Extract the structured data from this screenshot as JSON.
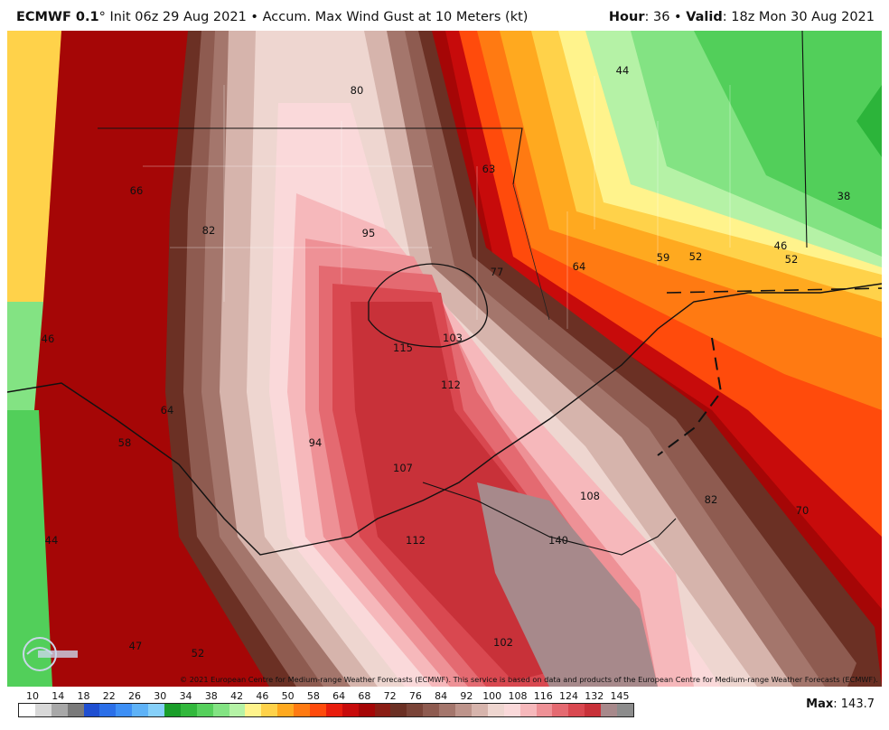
{
  "header": {
    "model": "ECMWF 0.1",
    "degree": "°",
    "init": " Init 06z 29 Aug 2021 • Accum. Max Wind Gust at 10 Meters (kt)",
    "hour_label": "Hour",
    "hour_value": ": 36 • ",
    "valid_label": "Valid",
    "valid_value": ": 18z Mon 30 Aug 2021"
  },
  "map": {
    "labels": [
      {
        "text": "80"
      },
      {
        "text": "44"
      },
      {
        "text": "63"
      },
      {
        "text": "66"
      },
      {
        "text": "38"
      },
      {
        "text": "82"
      },
      {
        "text": "95"
      },
      {
        "text": "46"
      },
      {
        "text": "52"
      },
      {
        "text": "59"
      },
      {
        "text": "52"
      },
      {
        "text": "64"
      },
      {
        "text": "77"
      },
      {
        "text": "46"
      },
      {
        "text": "115"
      },
      {
        "text": "103"
      },
      {
        "text": "112"
      },
      {
        "text": "64"
      },
      {
        "text": "58"
      },
      {
        "text": "94"
      },
      {
        "text": "107"
      },
      {
        "text": "108"
      },
      {
        "text": "82"
      },
      {
        "text": "70"
      },
      {
        "text": "44"
      },
      {
        "text": "112"
      },
      {
        "text": "140"
      },
      {
        "text": "47"
      },
      {
        "text": "52"
      },
      {
        "text": "102"
      }
    ],
    "credit": "© 2021 European Centre for Medium-range Weather Forecasts (ECMWF). This service is based on data and products of the European Centre for Medium-range Weather Forecasts (ECMWF).",
    "logo_icon": "weatherbell-logo-icon"
  },
  "colorbar": {
    "ticks": [
      "10",
      "14",
      "18",
      "22",
      "26",
      "30",
      "34",
      "38",
      "42",
      "46",
      "50",
      "58",
      "64",
      "68",
      "72",
      "76",
      "84",
      "92",
      "100",
      "108",
      "116",
      "124",
      "132",
      "145"
    ],
    "colors": [
      "#ffffff",
      "#d8d8d8",
      "#a8a8a8",
      "#7a7a7a",
      "#1f4fd1",
      "#2b6fe8",
      "#3d8ff5",
      "#5eb2f7",
      "#86d0f9",
      "#1a9e2a",
      "#32b83c",
      "#56d05c",
      "#83e383",
      "#b5f2a6",
      "#fff38c",
      "#ffd24a",
      "#ffa91f",
      "#ff7a12",
      "#ff4b0c",
      "#e81d0d",
      "#c70b0b",
      "#a50606",
      "#8a1d14",
      "#6b3024",
      "#7a4438",
      "#8e5b50",
      "#a4766c",
      "#bd948b",
      "#d6b4ac",
      "#eed6d0",
      "#fad9da",
      "#f6b8bb",
      "#ee9196",
      "#e46a71",
      "#d94850",
      "#c83139",
      "#a7898b",
      "#8c8c8c"
    ]
  },
  "max": {
    "label": "Max",
    "value": ": 143.7"
  }
}
